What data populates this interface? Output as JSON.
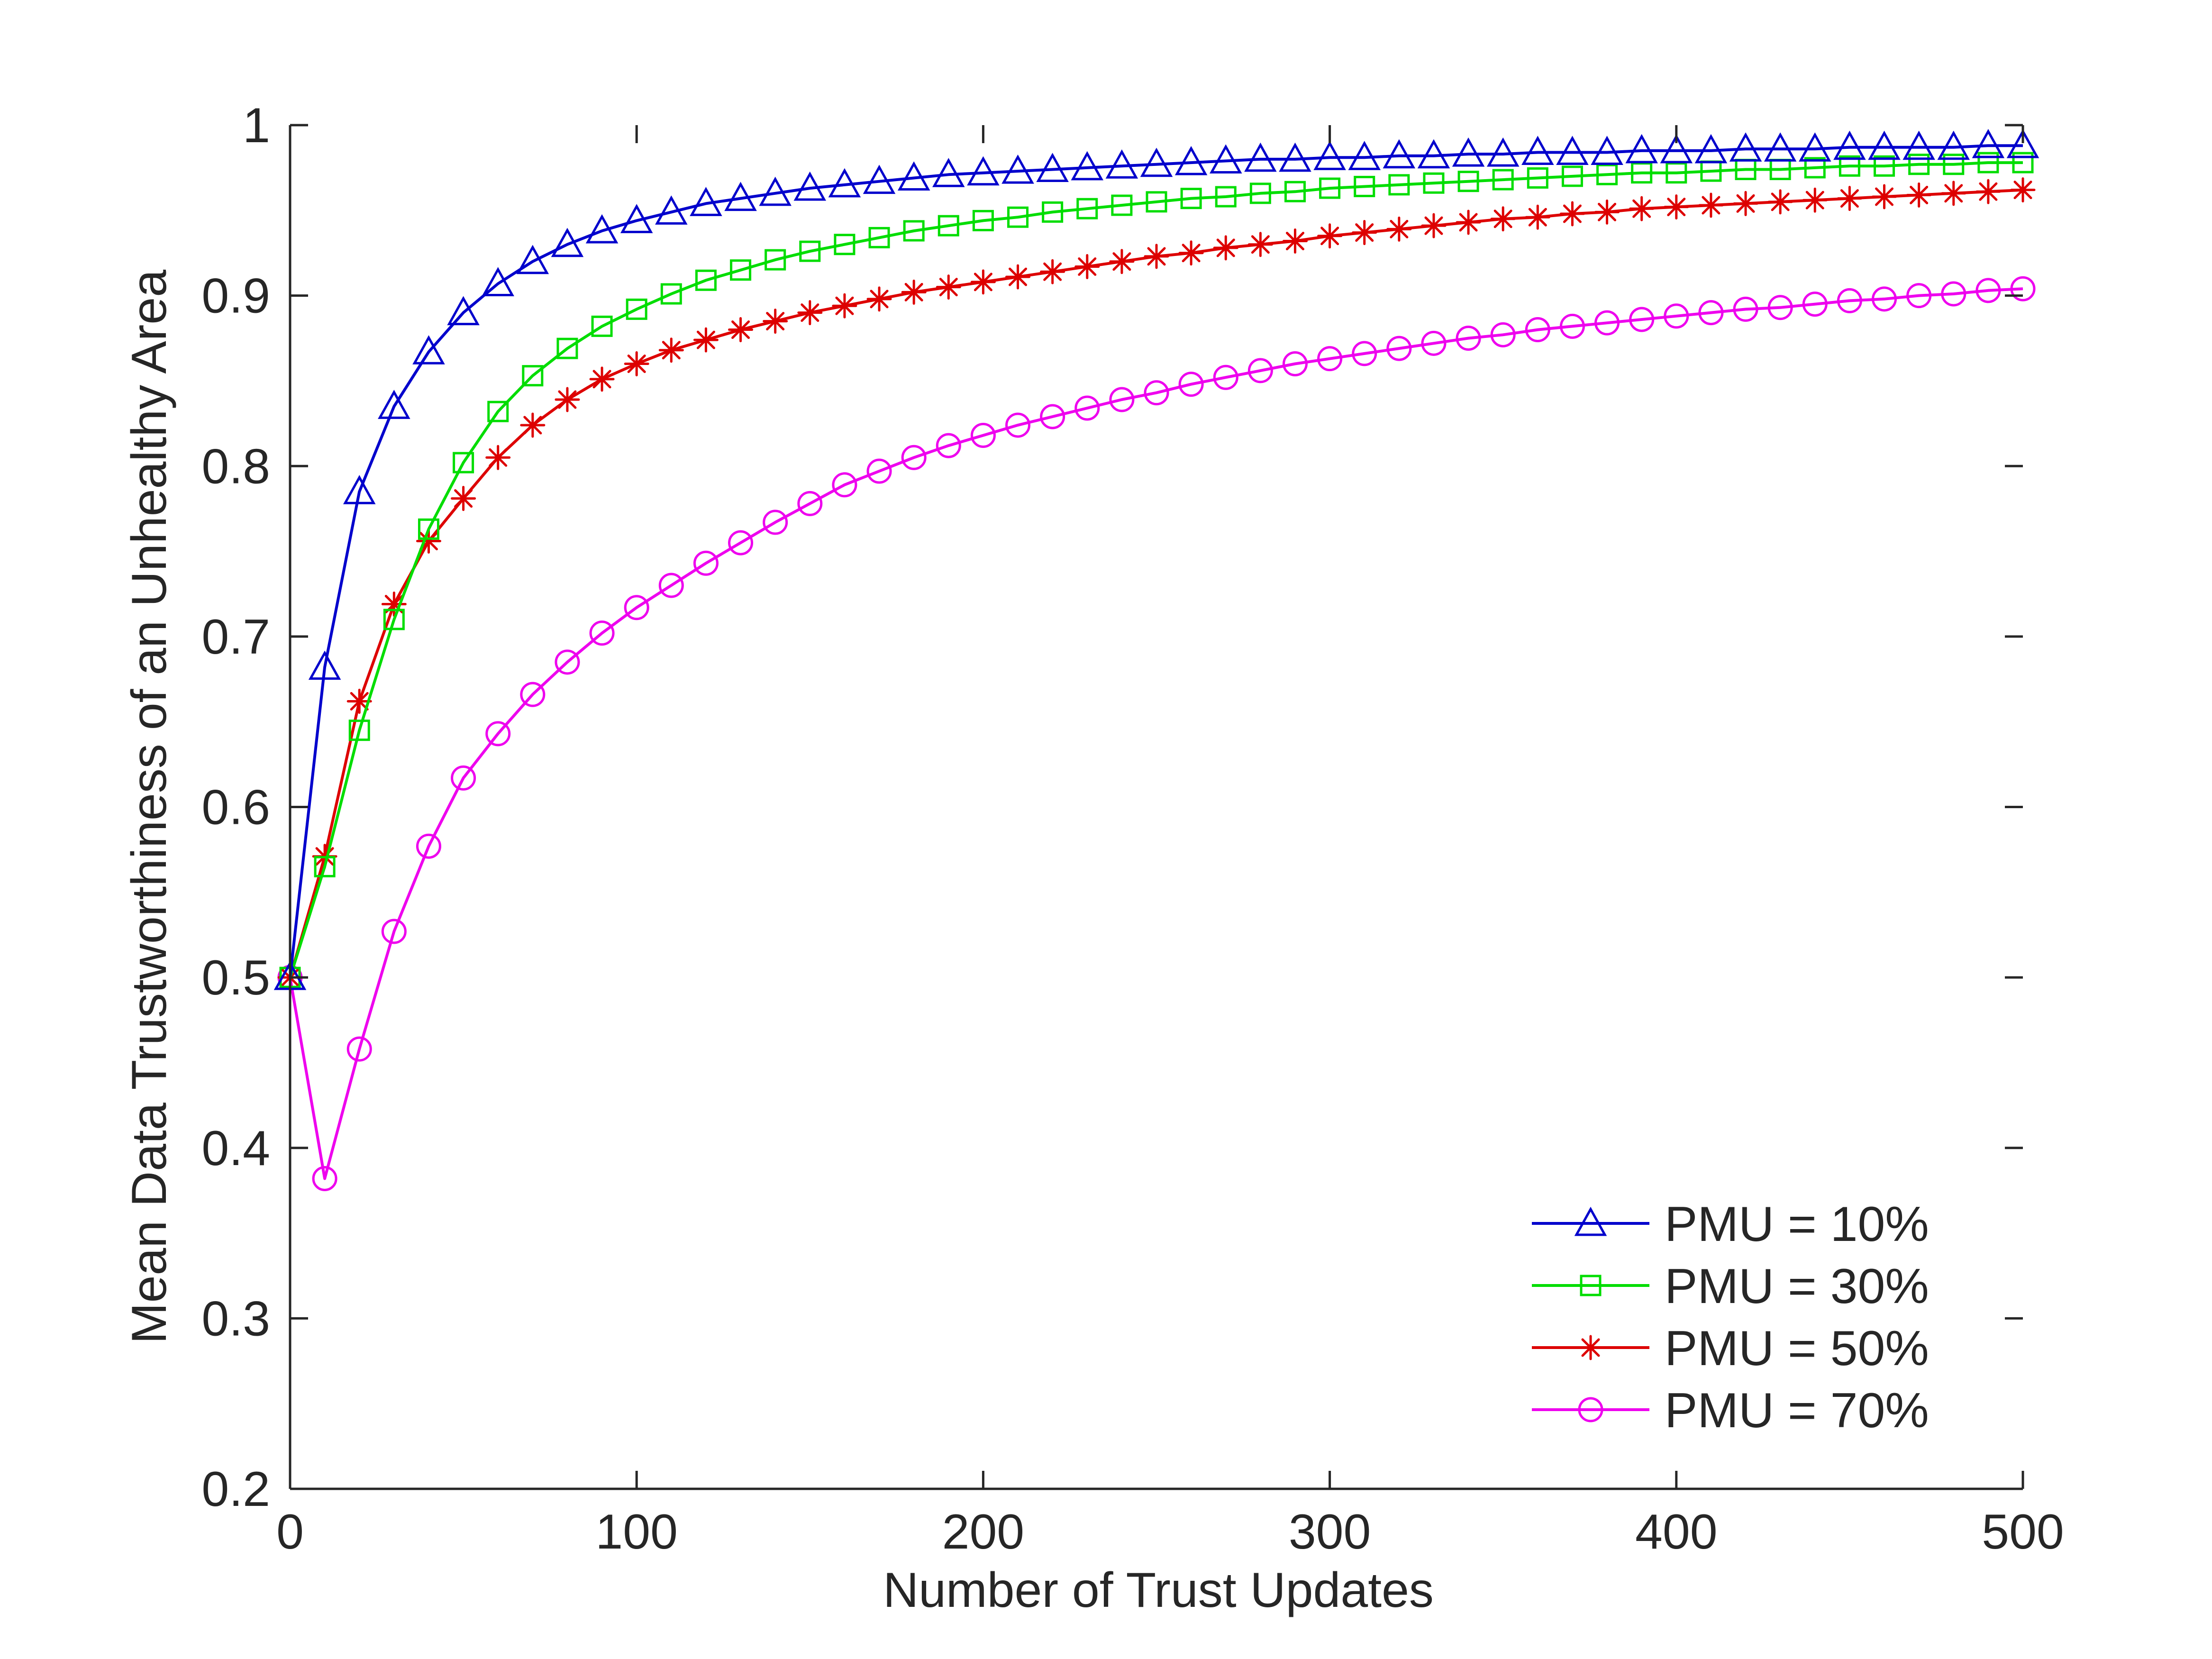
{
  "chart_data": {
    "type": "line",
    "title": "",
    "xlabel": "Number of Trust Updates",
    "ylabel": "Mean Data Trustworthiness of an Unhealthy Area",
    "xlim": [
      0,
      500
    ],
    "ylim": [
      0.2,
      1
    ],
    "xticks": [
      "0",
      "100",
      "200",
      "300",
      "400",
      "500"
    ],
    "yticks": [
      "0.2",
      "0.3",
      "0.4",
      "0.5",
      "0.6",
      "0.7",
      "0.8",
      "0.9",
      "1"
    ],
    "grid": false,
    "legend_position": "bottom-right",
    "x": [
      0,
      10,
      20,
      30,
      40,
      50,
      60,
      70,
      80,
      90,
      100,
      110,
      120,
      130,
      140,
      150,
      160,
      170,
      180,
      190,
      200,
      210,
      220,
      230,
      240,
      250,
      260,
      270,
      280,
      290,
      300,
      310,
      320,
      330,
      340,
      350,
      360,
      370,
      380,
      390,
      400,
      410,
      420,
      430,
      440,
      450,
      460,
      470,
      480,
      490,
      500
    ],
    "series": [
      {
        "name": "PMU = 10%",
        "color": "#0000cc",
        "marker": "triangle",
        "values": [
          0.5,
          0.682,
          0.785,
          0.835,
          0.867,
          0.89,
          0.907,
          0.92,
          0.93,
          0.938,
          0.944,
          0.949,
          0.954,
          0.957,
          0.96,
          0.963,
          0.965,
          0.967,
          0.969,
          0.971,
          0.972,
          0.973,
          0.974,
          0.975,
          0.976,
          0.977,
          0.978,
          0.979,
          0.98,
          0.98,
          0.981,
          0.981,
          0.982,
          0.982,
          0.983,
          0.983,
          0.984,
          0.984,
          0.984,
          0.985,
          0.985,
          0.985,
          0.986,
          0.986,
          0.986,
          0.987,
          0.987,
          0.987,
          0.987,
          0.988,
          0.988
        ]
      },
      {
        "name": "PMU = 30%",
        "color": "#00dd00",
        "marker": "square",
        "values": [
          0.5,
          0.565,
          0.645,
          0.71,
          0.763,
          0.802,
          0.832,
          0.853,
          0.869,
          0.882,
          0.892,
          0.901,
          0.909,
          0.915,
          0.921,
          0.926,
          0.93,
          0.934,
          0.938,
          0.941,
          0.944,
          0.946,
          0.949,
          0.951,
          0.953,
          0.955,
          0.957,
          0.958,
          0.96,
          0.961,
          0.963,
          0.964,
          0.965,
          0.966,
          0.967,
          0.968,
          0.969,
          0.97,
          0.971,
          0.972,
          0.972,
          0.973,
          0.974,
          0.974,
          0.975,
          0.976,
          0.976,
          0.977,
          0.977,
          0.978,
          0.978
        ]
      },
      {
        "name": "PMU = 50%",
        "color": "#dd0000",
        "marker": "asterisk",
        "values": [
          0.5,
          0.571,
          0.662,
          0.719,
          0.756,
          0.781,
          0.805,
          0.824,
          0.839,
          0.851,
          0.86,
          0.868,
          0.874,
          0.88,
          0.885,
          0.89,
          0.894,
          0.898,
          0.902,
          0.905,
          0.908,
          0.911,
          0.914,
          0.917,
          0.92,
          0.923,
          0.925,
          0.928,
          0.93,
          0.932,
          0.935,
          0.937,
          0.939,
          0.941,
          0.943,
          0.945,
          0.946,
          0.948,
          0.949,
          0.951,
          0.952,
          0.953,
          0.954,
          0.955,
          0.956,
          0.957,
          0.958,
          0.959,
          0.96,
          0.961,
          0.962
        ]
      },
      {
        "name": "PMU = 70%",
        "color": "#ee00ee",
        "marker": "circle",
        "values": [
          0.5,
          0.382,
          0.458,
          0.527,
          0.577,
          0.617,
          0.643,
          0.666,
          0.685,
          0.702,
          0.717,
          0.73,
          0.743,
          0.755,
          0.767,
          0.778,
          0.789,
          0.797,
          0.805,
          0.812,
          0.818,
          0.824,
          0.829,
          0.834,
          0.839,
          0.843,
          0.848,
          0.852,
          0.856,
          0.86,
          0.863,
          0.866,
          0.869,
          0.872,
          0.875,
          0.877,
          0.88,
          0.882,
          0.884,
          0.886,
          0.888,
          0.89,
          0.892,
          0.893,
          0.895,
          0.897,
          0.898,
          0.9,
          0.901,
          0.903,
          0.904
        ]
      }
    ]
  }
}
